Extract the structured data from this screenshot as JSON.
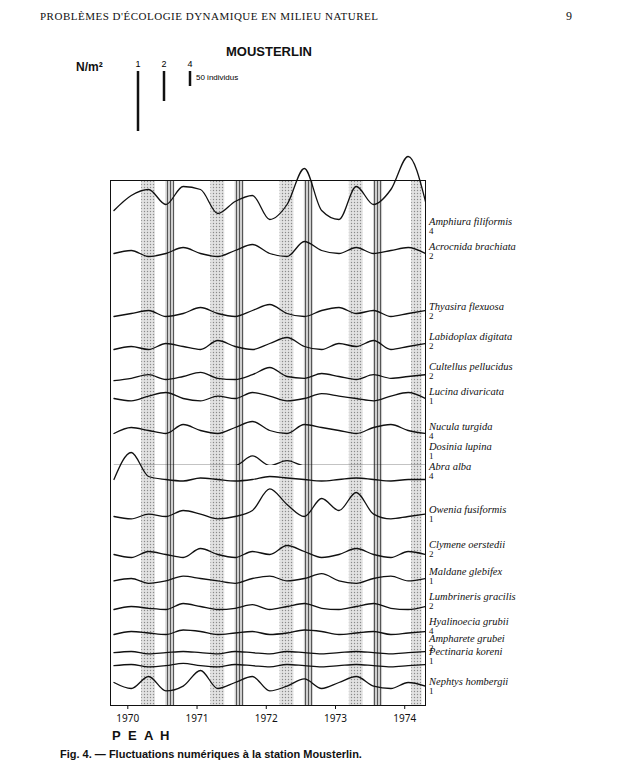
{
  "page": {
    "header": "PROBLÈMES D'ÉCOLOGIE DYNAMIQUE EN MILIEU NATUREL",
    "page_number": 9,
    "caption": "Fig. 4. — Fluctuations numériques à la station Mousterlin."
  },
  "chart_data": {
    "type": "line",
    "title": "MOUSTERLIN",
    "y_label": "N/m²",
    "color": "#111111",
    "tick_labels": "x",
    "scale_bar": {
      "value": 50,
      "label": "50 individus",
      "factors": [
        1,
        2,
        4
      ]
    },
    "x": [
      1969.8,
      1970.05,
      1970.3,
      1970.55,
      1970.8,
      1971.05,
      1971.3,
      1971.55,
      1971.8,
      1972.05,
      1972.3,
      1972.55,
      1972.8,
      1973.05,
      1973.3,
      1973.55,
      1973.8,
      1974.05,
      1974.3
    ],
    "xlim": [
      1969.75,
      1974.3
    ],
    "xticks": [
      1970,
      1971,
      1972,
      1973,
      1974
    ],
    "season_labels": [
      "P",
      "E",
      "A",
      "H"
    ],
    "season_bands": {
      "stippled": [
        [
          1970.2,
          1970.4
        ],
        [
          1971.2,
          1971.4
        ],
        [
          1972.2,
          1972.4
        ],
        [
          1973.2,
          1973.4
        ],
        [
          1974.1,
          1974.25
        ]
      ],
      "hatched": [
        [
          1970.55,
          1970.68
        ],
        [
          1971.55,
          1971.68
        ],
        [
          1972.55,
          1972.68
        ],
        [
          1973.55,
          1973.68
        ]
      ]
    },
    "series": [
      {
        "name": "Amphiura filiformis",
        "factor": 4,
        "ylim": [
          0,
          300
        ],
        "values": [
          100,
          150,
          170,
          120,
          180,
          170,
          90,
          130,
          150,
          70,
          120,
          240,
          100,
          70,
          180,
          120,
          170,
          280,
          130
        ]
      },
      {
        "name": "Acrocnida brachiata",
        "factor": 2,
        "ylim": [
          0,
          80
        ],
        "values": [
          20,
          25,
          15,
          20,
          30,
          20,
          15,
          25,
          35,
          20,
          15,
          40,
          25,
          20,
          30,
          20,
          25,
          30,
          20
        ]
      },
      {
        "name": "Thyasira flexuosa",
        "factor": 2,
        "ylim": [
          0,
          60
        ],
        "values": [
          15,
          20,
          25,
          15,
          20,
          30,
          20,
          15,
          25,
          35,
          20,
          15,
          25,
          30,
          20,
          25,
          15,
          20,
          25
        ]
      },
      {
        "name": "Labidoplax digitata",
        "factor": 2,
        "ylim": [
          0,
          60
        ],
        "values": [
          10,
          15,
          10,
          20,
          15,
          10,
          25,
          15,
          10,
          20,
          30,
          15,
          10,
          20,
          15,
          25,
          10,
          15,
          20
        ]
      },
      {
        "name": "Cultellus pellucidus",
        "factor": 2,
        "ylim": [
          0,
          50
        ],
        "values": [
          8,
          12,
          18,
          10,
          15,
          22,
          12,
          10,
          18,
          30,
          15,
          12,
          20,
          15,
          10,
          18,
          12,
          15,
          18
        ]
      },
      {
        "name": "Lucina divaricata",
        "factor": 1,
        "ylim": [
          0,
          30
        ],
        "values": [
          10,
          8,
          12,
          15,
          10,
          8,
          12,
          10,
          15,
          12,
          8,
          10,
          14,
          12,
          10,
          8,
          12,
          15,
          10
        ]
      },
      {
        "name": "Nucula turgida",
        "factor": 4,
        "ylim": [
          0,
          150
        ],
        "values": [
          40,
          60,
          50,
          40,
          70,
          50,
          40,
          60,
          80,
          50,
          40,
          70,
          60,
          50,
          40,
          60,
          70,
          50,
          40
        ]
      },
      {
        "name": "Dosinia lupina",
        "factor": 1,
        "ylim": [
          0,
          20
        ],
        "values": [
          0,
          0,
          0,
          0,
          0,
          0,
          0,
          0,
          8,
          0,
          4,
          0,
          0,
          0,
          0,
          0,
          0,
          0,
          0
        ]
      },
      {
        "name": "Abra alba",
        "factor": 4,
        "ylim": [
          0,
          150
        ],
        "values": [
          20,
          110,
          30,
          20,
          15,
          25,
          20,
          15,
          20,
          30,
          25,
          20,
          15,
          20,
          25,
          20,
          15,
          20,
          20
        ]
      },
      {
        "name": "Owenia fusiformis",
        "factor": 1,
        "ylim": [
          0,
          40
        ],
        "values": [
          10,
          8,
          12,
          10,
          15,
          12,
          8,
          10,
          15,
          33,
          20,
          10,
          25,
          15,
          30,
          12,
          8,
          10,
          12
        ]
      },
      {
        "name": "Clymene oerstedii",
        "factor": 2,
        "ylim": [
          0,
          50
        ],
        "values": [
          15,
          10,
          20,
          15,
          10,
          25,
          15,
          10,
          20,
          15,
          30,
          20,
          10,
          15,
          25,
          15,
          10,
          20,
          15
        ]
      },
      {
        "name": "Maldane glebifex",
        "factor": 1,
        "ylim": [
          0,
          25
        ],
        "values": [
          8,
          10,
          6,
          8,
          12,
          10,
          8,
          6,
          10,
          12,
          8,
          10,
          14,
          8,
          6,
          10,
          12,
          8,
          10
        ]
      },
      {
        "name": "Lumbrineris gracilis",
        "factor": 2,
        "ylim": [
          0,
          40
        ],
        "values": [
          10,
          15,
          12,
          10,
          20,
          15,
          10,
          12,
          18,
          10,
          15,
          20,
          12,
          10,
          15,
          20,
          12,
          10,
          15
        ]
      },
      {
        "name": "Hyalinoecia grubii",
        "factor": 4,
        "ylim": [
          0,
          80
        ],
        "values": [
          20,
          30,
          25,
          20,
          35,
          30,
          20,
          25,
          30,
          20,
          25,
          35,
          30,
          20,
          25,
          30,
          20,
          25,
          30
        ]
      },
      {
        "name": "Ampharete grubei",
        "factor": 2,
        "ylim": [
          0,
          30
        ],
        "values": [
          8,
          10,
          6,
          8,
          10,
          8,
          6,
          10,
          8,
          6,
          10,
          8,
          6,
          8,
          10,
          8,
          6,
          8,
          10
        ]
      },
      {
        "name": "Pectinaria koreni",
        "factor": 1,
        "ylim": [
          0,
          15
        ],
        "values": [
          4,
          5,
          3,
          4,
          6,
          4,
          3,
          5,
          4,
          3,
          5,
          4,
          3,
          4,
          5,
          4,
          3,
          4,
          5
        ]
      },
      {
        "name": "Nephtys hombergii",
        "factor": 1,
        "ylim": [
          0,
          30
        ],
        "values": [
          15,
          10,
          20,
          8,
          12,
          25,
          10,
          15,
          20,
          8,
          12,
          18,
          10,
          15,
          20,
          12,
          10,
          15,
          12
        ]
      }
    ]
  }
}
